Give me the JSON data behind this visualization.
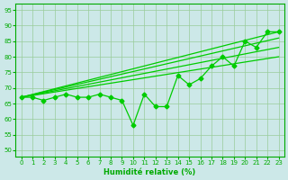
{
  "x": [
    0,
    1,
    2,
    3,
    4,
    5,
    6,
    7,
    8,
    9,
    10,
    11,
    12,
    13,
    14,
    15,
    16,
    17,
    18,
    19,
    20,
    21,
    22,
    23
  ],
  "data_line": [
    67,
    67,
    66,
    67,
    68,
    67,
    67,
    68,
    67,
    66,
    58,
    68,
    64,
    64,
    74,
    71,
    73,
    77,
    80,
    77,
    85,
    83,
    88,
    88
  ],
  "regression_lines": [
    {
      "x0": 0,
      "y0": 67,
      "x1": 23,
      "y1": 80
    },
    {
      "x0": 0,
      "y0": 67,
      "x1": 23,
      "y1": 83
    },
    {
      "x0": 0,
      "y0": 67,
      "x1": 23,
      "y1": 86
    },
    {
      "x0": 0,
      "y0": 67,
      "x1": 23,
      "y1": 88
    }
  ],
  "line_color": "#00cc00",
  "marker": "D",
  "marker_size": 2.5,
  "xlabel": "Humidité relative (%)",
  "xlim": [
    -0.5,
    23.5
  ],
  "ylim": [
    48,
    97
  ],
  "yticks": [
    50,
    55,
    60,
    65,
    70,
    75,
    80,
    85,
    90,
    95
  ],
  "xticks": [
    0,
    1,
    2,
    3,
    4,
    5,
    6,
    7,
    8,
    9,
    10,
    11,
    12,
    13,
    14,
    15,
    16,
    17,
    18,
    19,
    20,
    21,
    22,
    23
  ],
  "grid_color": "#99cc99",
  "bg_color": "#cce8e8",
  "tick_color": "#00aa00",
  "label_color": "#00aa00"
}
